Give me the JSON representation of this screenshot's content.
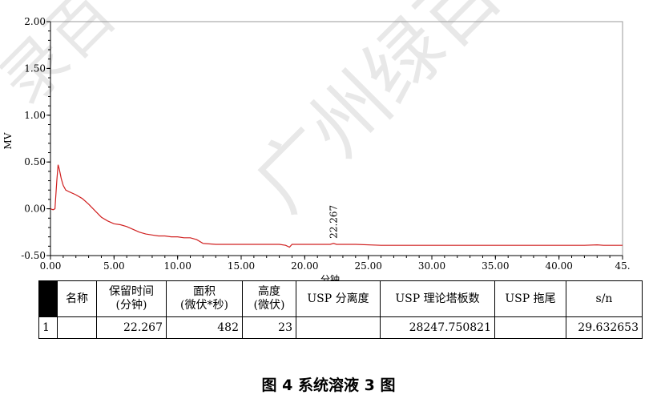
{
  "chart_data": {
    "type": "line",
    "ylabel": "MV",
    "xlabel": "分钟",
    "xlim": [
      0,
      45
    ],
    "ylim": [
      -0.5,
      2.0
    ],
    "xticks": [
      "0.00",
      "5.00",
      "10.00",
      "15.00",
      "20.00",
      "25.00",
      "30.00",
      "35.00",
      "40.00",
      "45."
    ],
    "yticks": [
      "2.00",
      "1.50",
      "1.00",
      "0.50",
      "0.00",
      "-0.50"
    ],
    "grid": false,
    "peak_annotation": "22.267",
    "series": [
      {
        "color": "#d02020",
        "x": [
          0,
          0.2,
          0.35,
          0.5,
          0.6,
          0.7,
          0.85,
          1.0,
          1.2,
          1.5,
          2.0,
          2.5,
          3.0,
          3.5,
          4.0,
          4.5,
          5.0,
          5.5,
          6.0,
          6.5,
          7.0,
          7.5,
          8.0,
          8.5,
          9.0,
          9.5,
          10.0,
          10.5,
          11.0,
          11.5,
          12.0,
          13.0,
          14.0,
          15.0,
          16.0,
          17.0,
          18.0,
          18.5,
          18.8,
          19.0,
          19.3,
          20.0,
          21.0,
          22.0,
          22.267,
          22.5,
          23.0,
          24.0,
          26.0,
          28.0,
          30.0,
          32.0,
          34.0,
          36.0,
          38.0,
          40.0,
          42.0,
          43.0,
          43.5,
          44.0,
          45.0
        ],
        "y": [
          0.0,
          -0.01,
          0.0,
          0.3,
          0.47,
          0.42,
          0.32,
          0.25,
          0.2,
          0.18,
          0.15,
          0.11,
          0.05,
          -0.02,
          -0.09,
          -0.13,
          -0.16,
          -0.17,
          -0.19,
          -0.22,
          -0.25,
          -0.27,
          -0.28,
          -0.29,
          -0.29,
          -0.3,
          -0.3,
          -0.31,
          -0.31,
          -0.33,
          -0.37,
          -0.38,
          -0.38,
          -0.38,
          -0.38,
          -0.38,
          -0.38,
          -0.39,
          -0.41,
          -0.38,
          -0.38,
          -0.38,
          -0.38,
          -0.38,
          -0.37,
          -0.38,
          -0.38,
          -0.38,
          -0.39,
          -0.39,
          -0.39,
          -0.39,
          -0.39,
          -0.39,
          -0.39,
          -0.39,
          -0.39,
          -0.385,
          -0.39,
          -0.39,
          -0.39
        ]
      }
    ]
  },
  "table": {
    "headers": [
      {
        "line1": "名称",
        "line2": ""
      },
      {
        "line1": "保留时间",
        "line2": "(分钟)"
      },
      {
        "line1": "面积",
        "line2": "(微伏*秒)"
      },
      {
        "line1": "高度",
        "line2": "(微伏)"
      },
      {
        "line1": "USP 分离度",
        "line2": ""
      },
      {
        "line1": "USP 理论塔板数",
        "line2": ""
      },
      {
        "line1": "USP 拖尾",
        "line2": ""
      },
      {
        "line1": "s/n",
        "line2": ""
      }
    ],
    "rows": [
      {
        "index": "1",
        "name": "",
        "rt": "22.267",
        "area": "482",
        "height": "23",
        "resolution": "",
        "plates": "28247.750821",
        "tailing": "",
        "sn": "29.632653"
      }
    ]
  },
  "caption": "图 4  系统溶液 3 图",
  "watermarks": [
    "绿百草",
    "广州绿百草",
    "录百"
  ]
}
